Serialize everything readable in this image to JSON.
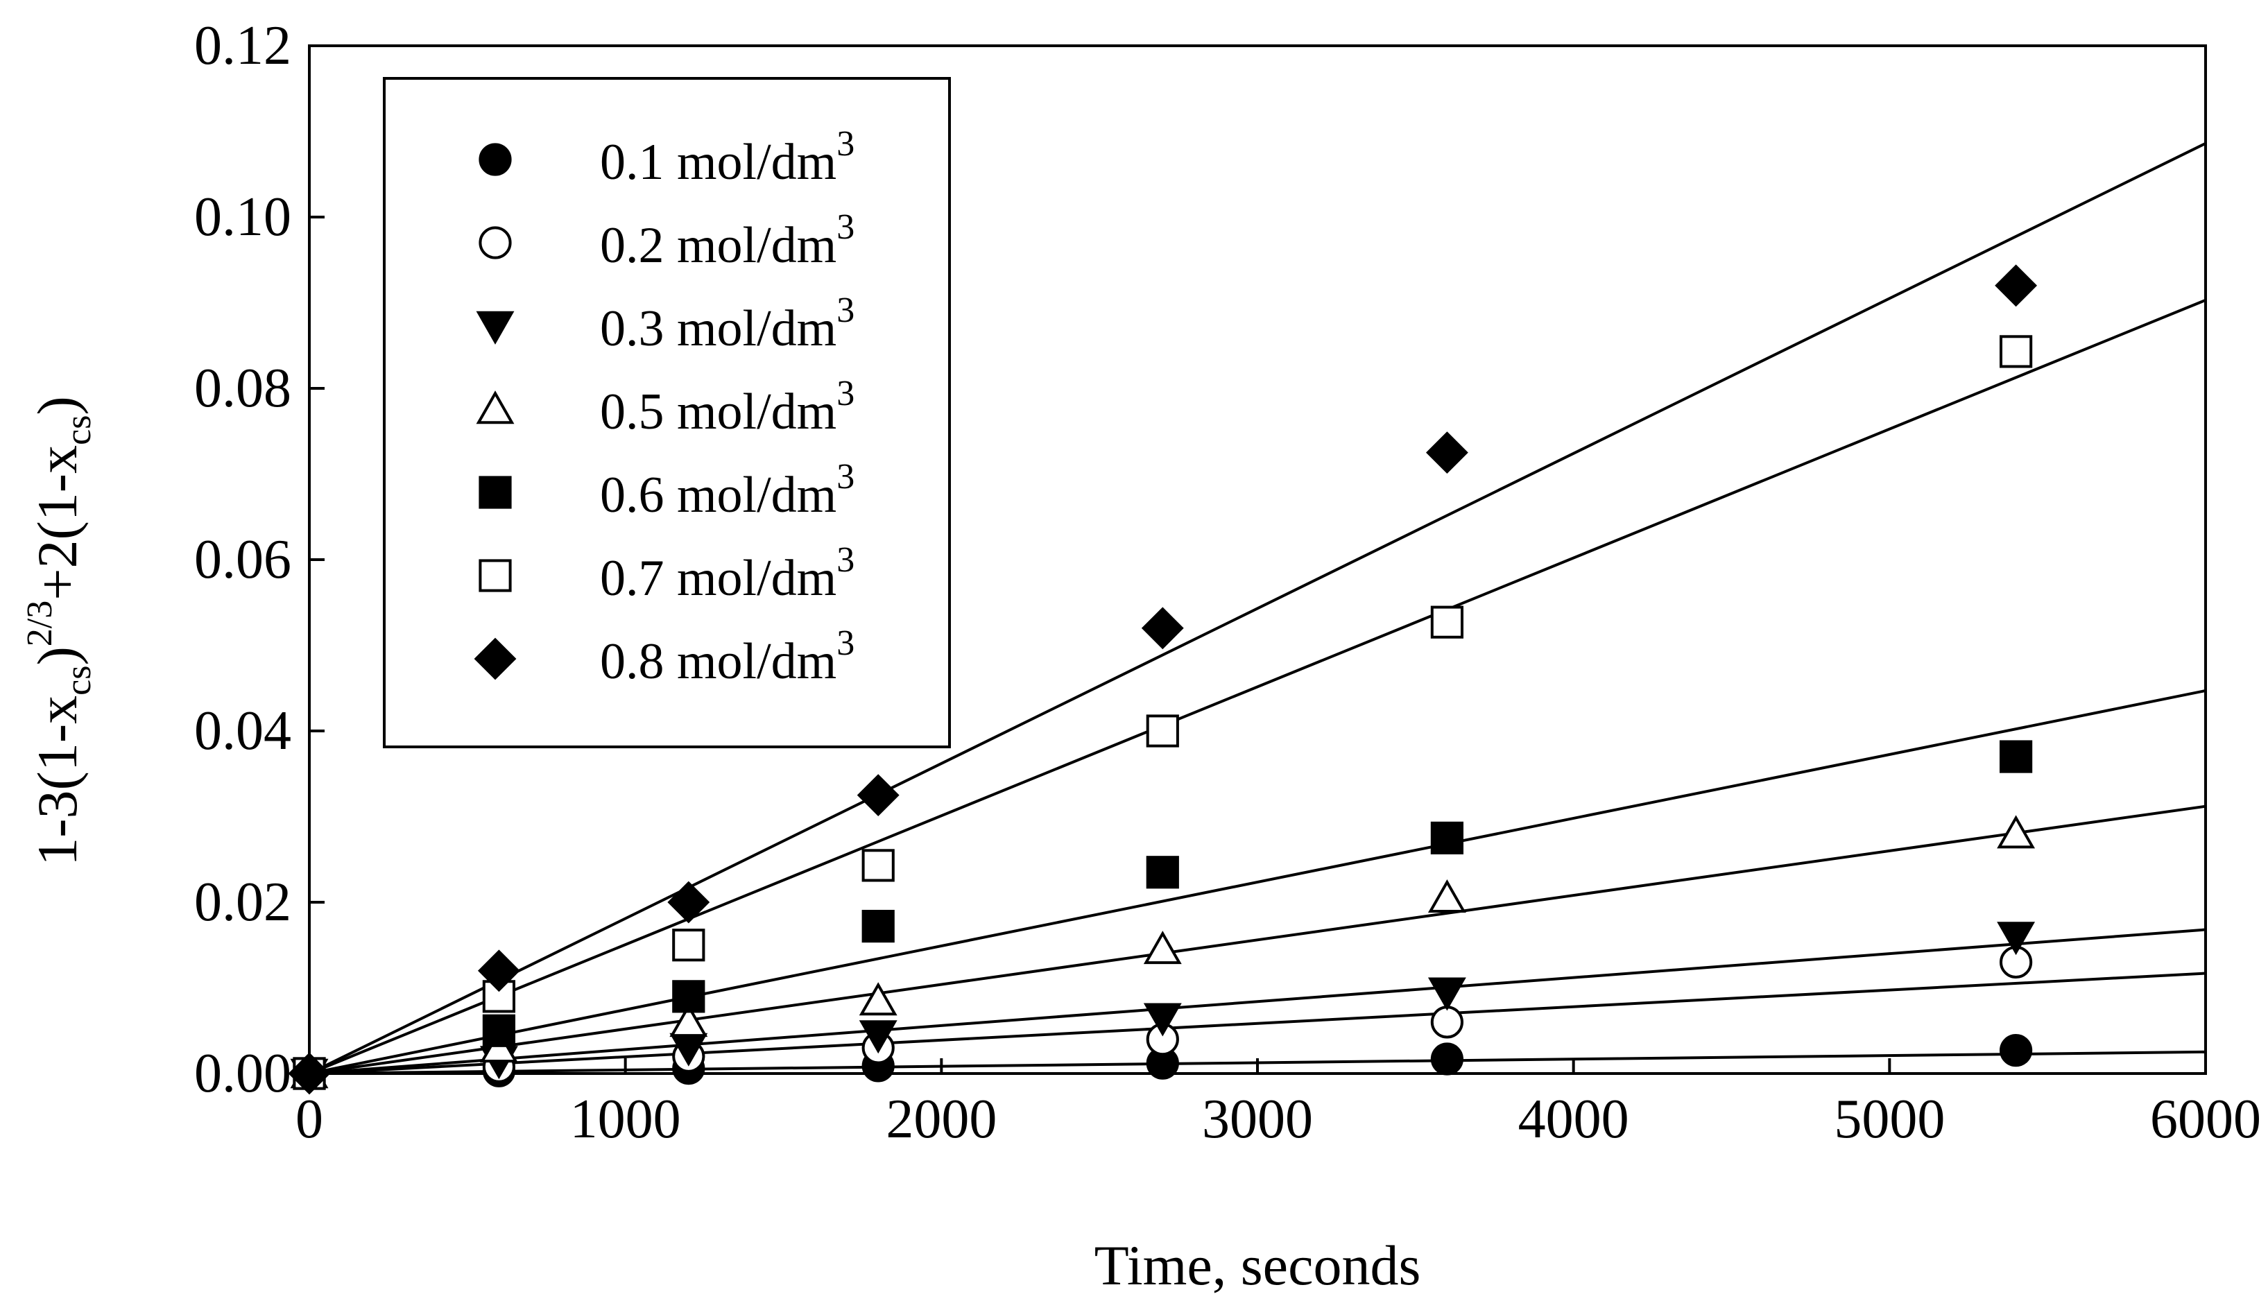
{
  "chart_data": {
    "type": "scatter",
    "title": "",
    "xlabel": "Time, seconds",
    "ylabel": {
      "parts": [
        {
          "text": "1-3(1-x",
          "style": "normal"
        },
        {
          "text": "cs",
          "style": "sub"
        },
        {
          "text": ")",
          "style": "normal"
        },
        {
          "text": "2/3",
          "style": "sup"
        },
        {
          "text": "+2(1-x",
          "style": "normal"
        },
        {
          "text": "cs",
          "style": "sub"
        },
        {
          "text": ")",
          "style": "normal"
        }
      ]
    },
    "xlim": [
      0,
      6000
    ],
    "ylim": [
      0,
      0.12
    ],
    "x_ticks": [
      0,
      1000,
      2000,
      3000,
      4000,
      5000,
      6000
    ],
    "x_tick_labels": [
      "0",
      "1000",
      "2000",
      "3000",
      "4000",
      "5000",
      "6000"
    ],
    "y_ticks": [
      0,
      0.02,
      0.04,
      0.06,
      0.08,
      0.1,
      0.12
    ],
    "y_tick_labels": [
      "0.00",
      "0.02",
      "0.04",
      "0.06",
      "0.08",
      "0.10",
      "0.12"
    ],
    "grid": false,
    "legend_position": "top-left",
    "legend_unit": "mol/dm",
    "legend_unit_sup": "3",
    "x": [
      0,
      600,
      1200,
      1800,
      2700,
      3600,
      5400
    ],
    "series": [
      {
        "name": "0.1",
        "marker": "circle-filled",
        "values": [
          0,
          0.0003,
          0.0006,
          0.0009,
          0.0012,
          0.0017,
          0.0027
        ],
        "fit_slope": 4.2e-07
      },
      {
        "name": "0.2",
        "marker": "circle-open",
        "values": [
          0,
          0.0008,
          0.002,
          0.003,
          0.004,
          0.006,
          0.013
        ],
        "fit_slope": 1.95e-06
      },
      {
        "name": "0.3",
        "marker": "triangle-down-filled",
        "values": [
          0,
          0.0015,
          0.003,
          0.0045,
          0.0065,
          0.0095,
          0.016
        ],
        "fit_slope": 2.8e-06
      },
      {
        "name": "0.5",
        "marker": "triangle-up-open",
        "values": [
          0,
          0.003,
          0.006,
          0.0085,
          0.0145,
          0.0205,
          0.028
        ],
        "fit_slope": 5.2e-06
      },
      {
        "name": "0.6",
        "marker": "square-filled",
        "values": [
          0,
          0.005,
          0.009,
          0.0172,
          0.0235,
          0.0275,
          0.037
        ],
        "fit_slope": 7.45e-06
      },
      {
        "name": "0.7",
        "marker": "square-open",
        "values": [
          0,
          0.009,
          0.015,
          0.0243,
          0.04,
          0.0527,
          0.0843
        ],
        "fit_slope": 1.505e-05
      },
      {
        "name": "0.8",
        "marker": "diamond-filled",
        "values": [
          0,
          0.012,
          0.02,
          0.0325,
          0.052,
          0.0725,
          0.092
        ],
        "fit_slope": 1.81e-05
      }
    ]
  }
}
